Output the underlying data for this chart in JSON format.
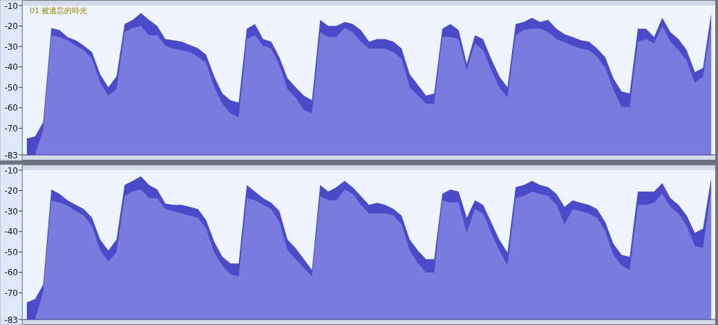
{
  "chart_data": [
    {
      "type": "area",
      "title": "01 被遺忘的時光",
      "categories": [
        null,
        null,
        null,
        null,
        null,
        null,
        null,
        null,
        null,
        null,
        null,
        null,
        null,
        null,
        null,
        null,
        null,
        null,
        null,
        null,
        null,
        null,
        null,
        null,
        null,
        null,
        null,
        null,
        null,
        null,
        null,
        null,
        null,
        null,
        null,
        null,
        null,
        null,
        null,
        null,
        null,
        null,
        null,
        null,
        null,
        null,
        null,
        null,
        null,
        null,
        null,
        null,
        null,
        null,
        null,
        null,
        null,
        null,
        null,
        null,
        null,
        null,
        null,
        null,
        null,
        null,
        null,
        null,
        null,
        null,
        null,
        null,
        null,
        null,
        null,
        null,
        null,
        null,
        null,
        null,
        null,
        null,
        null,
        null,
        null
      ],
      "ylim": [
        -83,
        -10
      ],
      "yticks": [
        -10,
        -20,
        -30,
        -40,
        -50,
        -60,
        -70,
        -83
      ],
      "grid": false,
      "series": [
        {
          "color": "#4b4bc9",
          "values": [
            -75,
            -74,
            -67,
            -21,
            -22,
            -25.5,
            -27,
            -29.6,
            -32.8,
            -43.6,
            -50,
            -44.6,
            -19,
            -17,
            -13.6,
            -17,
            -20,
            -26.4,
            -27,
            -27.7,
            -29.3,
            -30.9,
            -34,
            -44.6,
            -53,
            -56.3,
            -57.4,
            -21.3,
            -19,
            -26.4,
            -27.7,
            -35.3,
            -45.6,
            -50,
            -54,
            -56.3,
            -17,
            -20,
            -20,
            -18,
            -19,
            -22,
            -27.7,
            -26.4,
            -26.4,
            -27.7,
            -31,
            -43.6,
            -48.8,
            -54,
            -53,
            -21.3,
            -19,
            -22,
            -38.4,
            -24.5,
            -26.4,
            -36,
            -44.6,
            -50,
            -19,
            -18,
            -16,
            -18,
            -17,
            -21.3,
            -24,
            -25.4,
            -27,
            -27.7,
            -31,
            -35.3,
            -45.6,
            -52,
            -53,
            -21.3,
            -21.3,
            -25.4,
            -16,
            -23,
            -26.4,
            -31.8,
            -42.5,
            -40.5,
            -14
          ]
        },
        {
          "color": "#7b7bdf",
          "values": [
            -83,
            -83,
            -71,
            -24.5,
            -25.5,
            -27,
            -29.6,
            -31.8,
            -36,
            -47.8,
            -54,
            -51,
            -23,
            -21,
            -20,
            -24.5,
            -24.5,
            -29.6,
            -31,
            -31.8,
            -32.8,
            -35,
            -38,
            -50,
            -58,
            -62.6,
            -64.7,
            -26.4,
            -24.5,
            -29.6,
            -31,
            -39,
            -51,
            -55,
            -61,
            -62.6,
            -23,
            -25.4,
            -25.4,
            -21,
            -23,
            -27.7,
            -31,
            -31,
            -31,
            -32.8,
            -36,
            -50,
            -54,
            -58,
            -58,
            -25.4,
            -25.4,
            -26.4,
            -41.5,
            -28.6,
            -31.8,
            -41.5,
            -50,
            -55,
            -24.5,
            -22,
            -21.3,
            -21.3,
            -23,
            -26.4,
            -28,
            -29.6,
            -31,
            -31.8,
            -35,
            -40.5,
            -51,
            -59.6,
            -59.6,
            -27.7,
            -26.4,
            -28.6,
            -20,
            -27.7,
            -31.8,
            -37,
            -47.8,
            -44.6,
            -20
          ]
        }
      ]
    },
    {
      "type": "area",
      "categories": [
        null,
        null,
        null,
        null,
        null,
        null,
        null,
        null,
        null,
        null,
        null,
        null,
        null,
        null,
        null,
        null,
        null,
        null,
        null,
        null,
        null,
        null,
        null,
        null,
        null,
        null,
        null,
        null,
        null,
        null,
        null,
        null,
        null,
        null,
        null,
        null,
        null,
        null,
        null,
        null,
        null,
        null,
        null,
        null,
        null,
        null,
        null,
        null,
        null,
        null,
        null,
        null,
        null,
        null,
        null,
        null,
        null,
        null,
        null,
        null,
        null,
        null,
        null,
        null,
        null,
        null,
        null,
        null,
        null,
        null,
        null,
        null,
        null,
        null,
        null,
        null,
        null,
        null,
        null,
        null,
        null,
        null,
        null,
        null,
        null
      ],
      "ylim": [
        -83,
        -10
      ],
      "yticks": [
        -10,
        -20,
        -30,
        -40,
        -50,
        -60,
        -70,
        -83
      ],
      "grid": false,
      "series": [
        {
          "color": "#4b4bc9",
          "values": [
            -74.6,
            -73,
            -66,
            -19.5,
            -21.6,
            -24.8,
            -27,
            -29,
            -33.3,
            -44,
            -49.3,
            -44,
            -17.3,
            -15.2,
            -13,
            -17.3,
            -19.5,
            -26.4,
            -27,
            -27,
            -28,
            -29,
            -34.4,
            -45,
            -52.4,
            -55.6,
            -55.6,
            -17.3,
            -20.5,
            -23.7,
            -26,
            -30,
            -44,
            -48.2,
            -53.5,
            -58.8,
            -17.3,
            -20.5,
            -18.4,
            -15.2,
            -18.4,
            -22.7,
            -27,
            -26,
            -27,
            -29,
            -32.2,
            -44,
            -49.3,
            -53.5,
            -53.5,
            -21.6,
            -19.5,
            -20.5,
            -33.3,
            -24.8,
            -27,
            -35.4,
            -44,
            -50.3,
            -18.4,
            -17.3,
            -15.2,
            -17.3,
            -18.4,
            -21.6,
            -28,
            -24.8,
            -26,
            -27,
            -29,
            -35.4,
            -46,
            -51.4,
            -52.4,
            -20.5,
            -20.5,
            -20.5,
            -16.3,
            -23.7,
            -27,
            -32.2,
            -40.7,
            -38.6,
            -14
          ]
        },
        {
          "color": "#7b7bdf",
          "values": [
            -83,
            -83,
            -69.5,
            -24.8,
            -25.9,
            -27.4,
            -30,
            -32.2,
            -37.5,
            -49.3,
            -54.6,
            -50.3,
            -22.7,
            -20.5,
            -19.5,
            -23.7,
            -23.7,
            -29,
            -30,
            -31.2,
            -32.2,
            -33.3,
            -38.6,
            -50.3,
            -56.7,
            -61,
            -62,
            -23.7,
            -24.8,
            -27,
            -29,
            -35.4,
            -49.3,
            -53.5,
            -57.8,
            -62,
            -22.7,
            -24.8,
            -24.8,
            -19.5,
            -21.6,
            -27,
            -31.2,
            -31.2,
            -31.2,
            -32.2,
            -36.5,
            -49.3,
            -55.6,
            -60,
            -60,
            -24.8,
            -25.9,
            -25.9,
            -40.7,
            -29,
            -31.2,
            -40.7,
            -49.3,
            -56.7,
            -23.7,
            -22.7,
            -20.5,
            -21.6,
            -22.7,
            -27,
            -36.5,
            -29,
            -30,
            -31.2,
            -33.3,
            -39.7,
            -51.4,
            -56.7,
            -58.8,
            -27,
            -27,
            -25.9,
            -21.6,
            -28,
            -31.2,
            -37.5,
            -47,
            -48,
            -19
          ]
        }
      ]
    }
  ]
}
